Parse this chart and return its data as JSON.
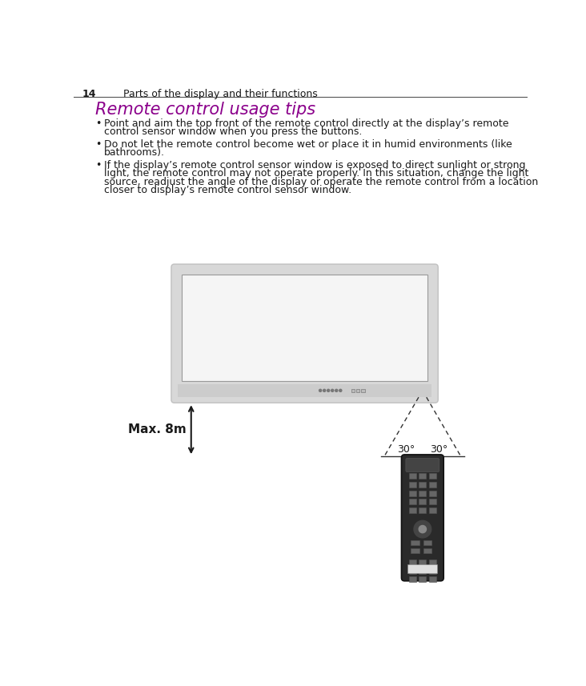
{
  "page_number": "14",
  "page_header": "Parts of the display and their functions",
  "section_title": "Remote control usage tips",
  "section_title_color": "#8B008B",
  "bullet_points": [
    [
      "Point and aim the top front of the remote control directly at the display’s remote",
      "control sensor window when you press the buttons."
    ],
    [
      "Do not let the remote control become wet or place it in humid environments (like",
      "bathrooms)."
    ],
    [
      "If the display’s remote control sensor window is exposed to direct sunlight or strong",
      "light, the remote control may not operate properly. In this situation, change the light",
      "source, readjust the angle of the display or operate the remote control from a location",
      "closer to display’s remote control sensor window."
    ]
  ],
  "max_distance_label": "Max. 8m",
  "angle_label_left": "30°",
  "angle_label_right": "30°",
  "bg_color": "#ffffff",
  "text_color": "#1a1a1a",
  "header_line_color": "#555555",
  "monitor_outline_color": "#bbbbbb",
  "monitor_fill_color": "#e8e8e8",
  "screen_fill_color": "#f8f8f8",
  "dashed_line_color": "#333333",
  "font_size_body": 9.0,
  "font_size_header": 9.0,
  "font_size_title": 15.0
}
